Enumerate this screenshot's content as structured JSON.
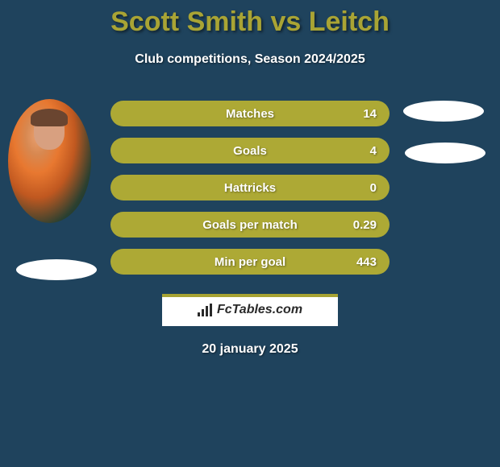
{
  "title": "Scott Smith vs Leitch",
  "subtitle": "Club competitions, Season 2024/2025",
  "date": "20 january 2025",
  "branding": "FcTables.com",
  "colors": {
    "background": "#1f435d",
    "accent": "#ada935",
    "title_color": "#a9a434",
    "text": "#ffffff"
  },
  "stats": [
    {
      "label": "Matches",
      "value": "14"
    },
    {
      "label": "Goals",
      "value": "4"
    },
    {
      "label": "Hattricks",
      "value": "0"
    },
    {
      "label": "Goals per match",
      "value": "0.29"
    },
    {
      "label": "Min per goal",
      "value": "443"
    }
  ]
}
